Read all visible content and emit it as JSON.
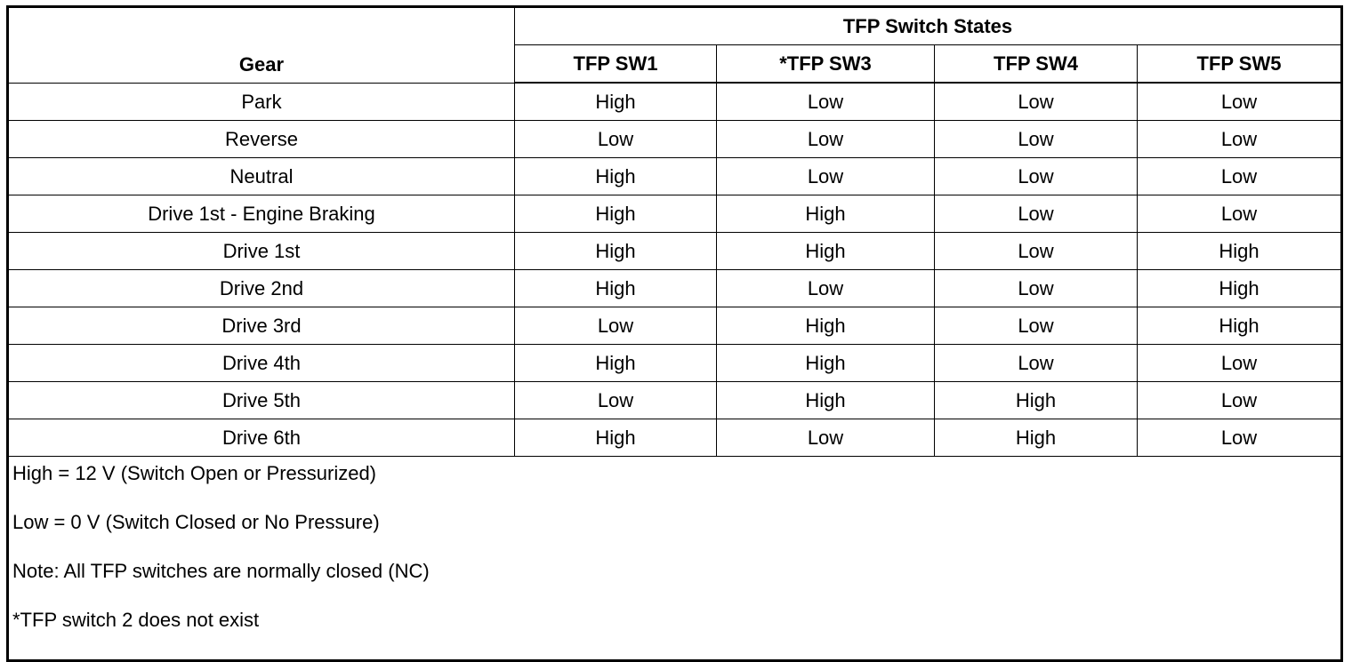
{
  "header": {
    "group_title": "TFP Switch States",
    "row_label": "Gear",
    "columns": [
      "TFP SW1",
      "*TFP SW3",
      "TFP SW4",
      "TFP SW5"
    ]
  },
  "rows": [
    {
      "gear": "Park",
      "states": [
        "High",
        "Low",
        "Low",
        "Low"
      ]
    },
    {
      "gear": "Reverse",
      "states": [
        "Low",
        "Low",
        "Low",
        "Low"
      ]
    },
    {
      "gear": "Neutral",
      "states": [
        "High",
        "Low",
        "Low",
        "Low"
      ]
    },
    {
      "gear": "Drive 1st - Engine Braking",
      "states": [
        "High",
        "High",
        "Low",
        "Low"
      ]
    },
    {
      "gear": "Drive 1st",
      "states": [
        "High",
        "High",
        "Low",
        "High"
      ]
    },
    {
      "gear": "Drive 2nd",
      "states": [
        "High",
        "Low",
        "Low",
        "High"
      ]
    },
    {
      "gear": "Drive 3rd",
      "states": [
        "Low",
        "High",
        "Low",
        "High"
      ]
    },
    {
      "gear": "Drive 4th",
      "states": [
        "High",
        "High",
        "Low",
        "Low"
      ]
    },
    {
      "gear": "Drive 5th",
      "states": [
        "Low",
        "High",
        "High",
        "Low"
      ]
    },
    {
      "gear": "Drive 6th",
      "states": [
        "High",
        "Low",
        "High",
        "Low"
      ]
    }
  ],
  "notes": [
    "High = 12 V (Switch Open or Pressurized)",
    "Low = 0 V (Switch Closed or No Pressure)",
    "Note: All TFP switches are normally closed (NC)",
    "*TFP switch 2 does not exist"
  ]
}
